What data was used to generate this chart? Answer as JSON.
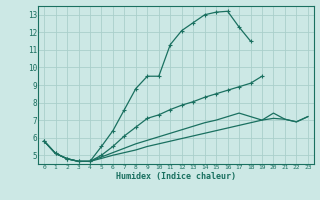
{
  "xlabel": "Humidex (Indice chaleur)",
  "bg_color": "#cce8e5",
  "grid_color": "#aacfcb",
  "line_color": "#1a7060",
  "xlim": [
    -0.5,
    23.5
  ],
  "ylim": [
    4.5,
    13.5
  ],
  "xticks": [
    0,
    1,
    2,
    3,
    4,
    5,
    6,
    7,
    8,
    9,
    10,
    11,
    12,
    13,
    14,
    15,
    16,
    17,
    18,
    19,
    20,
    21,
    22,
    23
  ],
  "yticks": [
    5,
    6,
    7,
    8,
    9,
    10,
    11,
    12,
    13
  ],
  "line1_x": [
    0,
    1,
    2,
    3,
    4,
    5,
    6,
    7,
    8,
    9,
    10,
    11,
    12,
    13,
    14,
    15,
    16,
    17,
    18
  ],
  "line1_y": [
    5.8,
    5.1,
    4.8,
    4.65,
    4.65,
    5.5,
    6.4,
    7.6,
    8.8,
    9.5,
    9.5,
    11.3,
    12.1,
    12.55,
    13.0,
    13.15,
    13.2,
    12.3,
    11.5
  ],
  "line2_x": [
    0,
    1,
    2,
    3,
    4,
    5,
    6,
    7,
    8,
    9,
    10,
    11,
    12,
    13,
    14,
    15,
    16,
    17,
    18,
    19
  ],
  "line2_y": [
    5.8,
    5.1,
    4.8,
    4.65,
    4.65,
    5.0,
    5.5,
    6.1,
    6.6,
    7.1,
    7.3,
    7.6,
    7.85,
    8.05,
    8.3,
    8.5,
    8.7,
    8.9,
    9.1,
    9.5
  ],
  "line3_x": [
    0,
    1,
    2,
    3,
    4,
    5,
    6,
    7,
    8,
    9,
    10,
    11,
    12,
    13,
    14,
    15,
    16,
    17,
    19,
    20,
    21,
    22,
    23
  ],
  "line3_y": [
    5.8,
    5.1,
    4.8,
    4.65,
    4.65,
    4.9,
    5.15,
    5.4,
    5.65,
    5.85,
    6.05,
    6.25,
    6.45,
    6.65,
    6.85,
    7.0,
    7.2,
    7.4,
    7.0,
    7.4,
    7.05,
    6.9,
    7.2
  ],
  "line4_x": [
    0,
    1,
    2,
    3,
    4,
    5,
    6,
    7,
    8,
    9,
    10,
    11,
    12,
    13,
    14,
    15,
    16,
    17,
    18,
    19,
    20,
    21,
    22,
    23
  ],
  "line4_y": [
    5.8,
    5.1,
    4.8,
    4.65,
    4.65,
    4.82,
    5.0,
    5.15,
    5.3,
    5.5,
    5.65,
    5.8,
    5.95,
    6.1,
    6.25,
    6.4,
    6.55,
    6.7,
    6.85,
    7.0,
    7.1,
    7.05,
    6.9,
    7.2
  ]
}
